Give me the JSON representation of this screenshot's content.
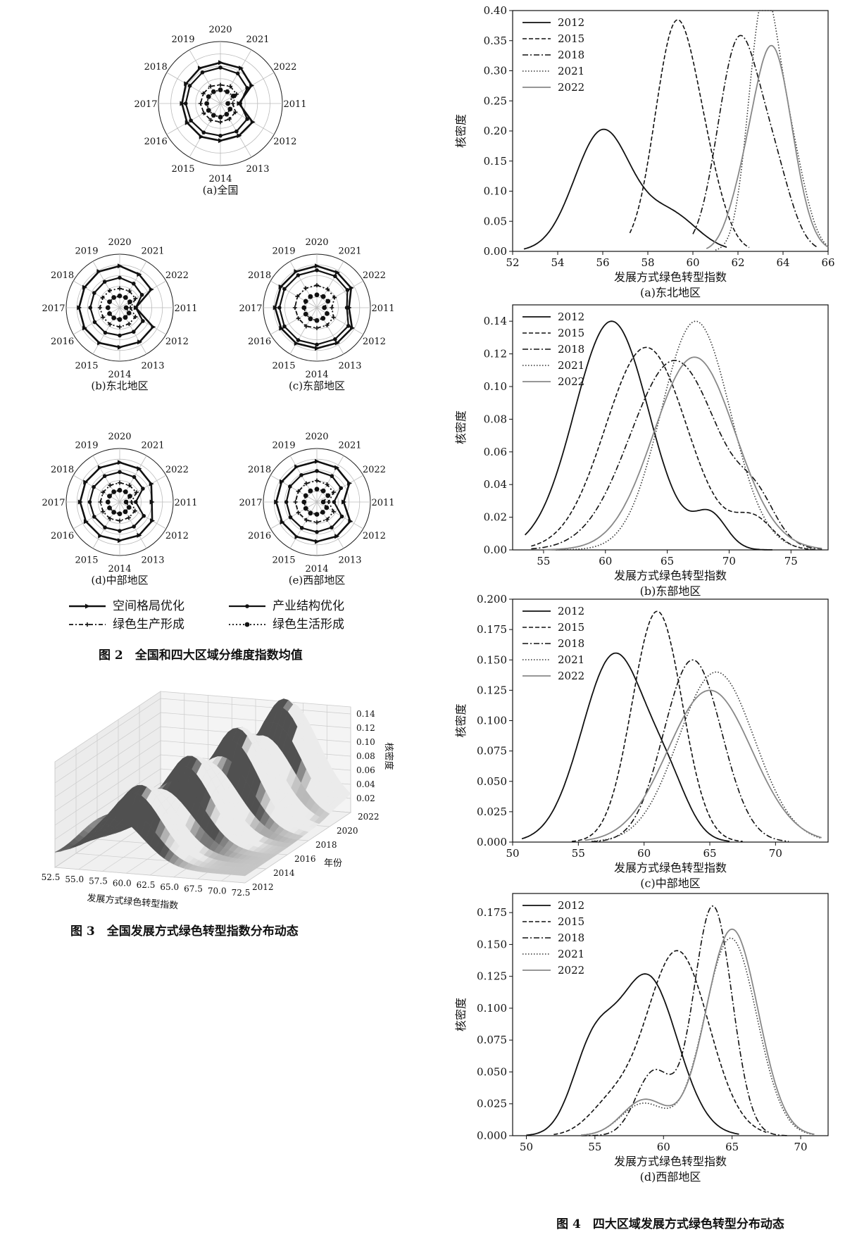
{
  "radar": {
    "years": [
      "2020",
      "2021",
      "2022",
      "2011",
      "2012",
      "2013",
      "2014",
      "2015",
      "2016",
      "2017",
      "2018",
      "2019"
    ],
    "max_value": 1.0,
    "legend": [
      "空间格局优化",
      "产业结构优化",
      "绿色生产形成",
      "绿色生活形成"
    ],
    "figure_caption": "图 2　全国和四大区域分维度指数均值",
    "panels": [
      {
        "label": "(a)全国",
        "series": [
          {
            "dimension": "空间格局优化",
            "values": [
              0.66,
              0.66,
              0.58,
              0.3,
              0.6,
              0.6,
              0.6,
              0.62,
              0.62,
              0.62,
              0.64,
              0.66
            ]
          },
          {
            "dimension": "产业结构优化",
            "values": [
              0.58,
              0.56,
              0.5,
              0.32,
              0.5,
              0.52,
              0.52,
              0.54,
              0.55,
              0.56,
              0.57,
              0.58
            ]
          },
          {
            "dimension": "绿色生产形成",
            "values": [
              0.3,
              0.32,
              0.3,
              0.2,
              0.28,
              0.29,
              0.3,
              0.31,
              0.31,
              0.32,
              0.32,
              0.32
            ]
          },
          {
            "dimension": "绿色生活形成",
            "values": [
              0.22,
              0.22,
              0.24,
              0.12,
              0.18,
              0.2,
              0.22,
              0.22,
              0.22,
              0.22,
              0.22,
              0.22
            ]
          }
        ]
      },
      {
        "label": "(b)东北地区",
        "series": [
          {
            "dimension": "空间格局优化",
            "values": [
              0.78,
              0.72,
              0.68,
              0.3,
              0.72,
              0.74,
              0.74,
              0.76,
              0.76,
              0.76,
              0.76,
              0.78
            ]
          },
          {
            "dimension": "产业结构优化",
            "values": [
              0.56,
              0.52,
              0.48,
              0.3,
              0.5,
              0.52,
              0.52,
              0.54,
              0.54,
              0.55,
              0.55,
              0.56
            ]
          },
          {
            "dimension": "绿色生产形成",
            "values": [
              0.36,
              0.36,
              0.34,
              0.2,
              0.34,
              0.35,
              0.36,
              0.36,
              0.36,
              0.37,
              0.37,
              0.37
            ]
          },
          {
            "dimension": "绿色生活形成",
            "values": [
              0.22,
              0.22,
              0.22,
              0.12,
              0.2,
              0.21,
              0.22,
              0.22,
              0.22,
              0.22,
              0.22,
              0.22
            ]
          }
        ]
      },
      {
        "label": "(c)东部地区",
        "series": [
          {
            "dimension": "空间格局优化",
            "values": [
              0.78,
              0.76,
              0.74,
              0.6,
              0.76,
              0.76,
              0.76,
              0.77,
              0.77,
              0.78,
              0.78,
              0.78
            ]
          },
          {
            "dimension": "产业结构优化",
            "values": [
              0.7,
              0.68,
              0.66,
              0.56,
              0.68,
              0.68,
              0.69,
              0.7,
              0.7,
              0.7,
              0.7,
              0.7
            ]
          },
          {
            "dimension": "绿色生产形成",
            "values": [
              0.42,
              0.4,
              0.38,
              0.28,
              0.36,
              0.38,
              0.38,
              0.4,
              0.4,
              0.41,
              0.42,
              0.42
            ]
          },
          {
            "dimension": "绿色生活形成",
            "values": [
              0.24,
              0.24,
              0.24,
              0.14,
              0.22,
              0.23,
              0.24,
              0.24,
              0.24,
              0.24,
              0.24,
              0.24
            ]
          }
        ]
      },
      {
        "label": "(d)中部地区",
        "series": [
          {
            "dimension": "空间格局优化",
            "values": [
              0.74,
              0.72,
              0.68,
              0.6,
              0.7,
              0.72,
              0.72,
              0.73,
              0.73,
              0.74,
              0.74,
              0.74
            ]
          },
          {
            "dimension": "产业结构优化",
            "values": [
              0.56,
              0.54,
              0.5,
              0.3,
              0.52,
              0.53,
              0.54,
              0.55,
              0.55,
              0.56,
              0.56,
              0.56
            ]
          },
          {
            "dimension": "绿色生产形成",
            "values": [
              0.36,
              0.36,
              0.36,
              0.22,
              0.33,
              0.34,
              0.35,
              0.36,
              0.36,
              0.36,
              0.36,
              0.36
            ]
          },
          {
            "dimension": "绿色生活形成",
            "values": [
              0.22,
              0.22,
              0.22,
              0.12,
              0.2,
              0.21,
              0.22,
              0.22,
              0.22,
              0.22,
              0.22,
              0.22
            ]
          }
        ]
      },
      {
        "label": "(e)西部地区",
        "series": [
          {
            "dimension": "空间格局优化",
            "values": [
              0.76,
              0.74,
              0.7,
              0.5,
              0.72,
              0.74,
              0.74,
              0.75,
              0.75,
              0.76,
              0.76,
              0.76
            ]
          },
          {
            "dimension": "产业结构优化",
            "values": [
              0.58,
              0.56,
              0.52,
              0.32,
              0.54,
              0.55,
              0.56,
              0.56,
              0.57,
              0.57,
              0.58,
              0.58
            ]
          },
          {
            "dimension": "绿色生产形成",
            "values": [
              0.4,
              0.38,
              0.36,
              0.22,
              0.36,
              0.38,
              0.38,
              0.39,
              0.4,
              0.4,
              0.4,
              0.4
            ]
          },
          {
            "dimension": "绿色生活形成",
            "values": [
              0.24,
              0.24,
              0.24,
              0.12,
              0.21,
              0.22,
              0.23,
              0.24,
              0.24,
              0.24,
              0.24,
              0.24
            ]
          }
        ]
      }
    ]
  },
  "surface": {
    "figure_caption": "图 3　全国发展方式绿色转型指数分布动态",
    "x_label": "发展方式绿色转型指数",
    "y_label": "年份",
    "z_label": "核密度",
    "x_ticks": [
      "52.5",
      "55.0",
      "57.5",
      "60.0",
      "62.5",
      "65.0",
      "67.5",
      "70.0",
      "72.5"
    ],
    "y_ticks": [
      "2012",
      "2014",
      "2016",
      "2018",
      "2020",
      "2022"
    ],
    "z_ticks": [
      "0.02",
      "0.04",
      "0.06",
      "0.08",
      "0.10",
      "0.12",
      "0.14"
    ],
    "x_range": [
      52.5,
      72.5
    ],
    "year_range": [
      2012,
      2022
    ],
    "z_range": [
      0,
      0.15
    ],
    "peaks": [
      {
        "year": 2012,
        "center": 58.5,
        "height": 0.08
      },
      {
        "year": 2015,
        "center": 61.5,
        "height": 0.1
      },
      {
        "year": 2018,
        "center": 64.0,
        "height": 0.12
      },
      {
        "year": 2021,
        "center": 66.0,
        "height": 0.13
      },
      {
        "year": 2022,
        "center": 66.5,
        "height": 0.14
      }
    ]
  },
  "kde": {
    "figure_caption": "图 4　四大区域发展方式绿色转型分布动态",
    "x_label": "发展方式绿色转型指数",
    "y_label": "核密度",
    "legend": [
      "2012",
      "2015",
      "2018",
      "2021",
      "2022"
    ],
    "panels": [
      {
        "label": "(a)东北地区",
        "xlim": [
          52,
          66
        ],
        "ylim": [
          0,
          0.4
        ],
        "xticks": [
          52,
          54,
          56,
          58,
          60,
          62,
          64,
          66
        ],
        "yticks": [
          "0.00",
          "0.05",
          "0.10",
          "0.15",
          "0.20",
          "0.25",
          "0.30",
          "0.35",
          "0.40"
        ],
        "series": [
          {
            "year": "2012",
            "comps": [
              [
                56,
                1.25,
                0.2
              ],
              [
                59,
                1.2,
                0.06
              ]
            ],
            "range": [
              52.5,
              61.5
            ]
          },
          {
            "year": "2015",
            "comps": [
              [
                59.2,
                0.9,
                0.36
              ],
              [
                60.6,
                0.8,
                0.1
              ]
            ],
            "range": [
              57.2,
              62.5
            ]
          },
          {
            "year": "2018",
            "comps": [
              [
                62,
                0.9,
                0.34
              ],
              [
                63.6,
                0.8,
                0.12
              ]
            ],
            "range": [
              60,
              65.5
            ]
          },
          {
            "year": "2021",
            "comps": [
              [
                63.1,
                0.65,
                0.39
              ],
              [
                64.3,
                0.7,
                0.16
              ]
            ],
            "range": [
              61,
              66
            ]
          },
          {
            "year": "2022",
            "comps": [
              [
                63.5,
                0.9,
                0.34
              ],
              [
                62,
                0.6,
                0.04
              ]
            ],
            "range": [
              60.6,
              66
            ]
          }
        ]
      },
      {
        "label": "(b)东部地区",
        "xlim": [
          52.5,
          78
        ],
        "ylim": [
          0,
          0.15
        ],
        "xticks": [
          55,
          60,
          65,
          70,
          75
        ],
        "yticks": [
          "0.00",
          "0.02",
          "0.04",
          "0.06",
          "0.08",
          "0.10",
          "0.12",
          "0.14"
        ],
        "series": [
          {
            "year": "2012",
            "comps": [
              [
                60.5,
                3,
                0.14
              ],
              [
                68.5,
                1.3,
                0.02
              ]
            ],
            "range": [
              53.5,
              73.5
            ]
          },
          {
            "year": "2015",
            "comps": [
              [
                63.3,
                3.3,
                0.124
              ],
              [
                72,
                1.6,
                0.018
              ]
            ],
            "range": [
              54,
              77
            ]
          },
          {
            "year": "2018",
            "comps": [
              [
                65.6,
                3.6,
                0.116
              ],
              [
                72.3,
                1.5,
                0.02
              ]
            ],
            "range": [
              54,
              77.5
            ]
          },
          {
            "year": "2021",
            "comps": [
              [
                67.3,
                2.8,
                0.14
              ]
            ],
            "range": [
              56,
              77
            ]
          },
          {
            "year": "2022",
            "comps": [
              [
                67.2,
                3.3,
                0.118
              ]
            ],
            "range": [
              55,
              77.5
            ]
          }
        ]
      },
      {
        "label": "(c)中部地区",
        "xlim": [
          50,
          74
        ],
        "ylim": [
          0,
          0.2
        ],
        "xticks": [
          50,
          55,
          60,
          65,
          70
        ],
        "yticks": [
          "0.000",
          "0.025",
          "0.050",
          "0.075",
          "0.100",
          "0.125",
          "0.150",
          "0.175",
          "0.200"
        ],
        "series": [
          {
            "year": "2012",
            "comps": [
              [
                57.8,
                2.5,
                0.155
              ],
              [
                62,
                1.5,
                0.03
              ]
            ],
            "range": [
              50.7,
              66.5
            ]
          },
          {
            "year": "2015",
            "comps": [
              [
                61,
                1.9,
                0.19
              ]
            ],
            "range": [
              54.5,
              67.5
            ]
          },
          {
            "year": "2018",
            "comps": [
              [
                63.7,
                2.2,
                0.15
              ]
            ],
            "range": [
              56,
              71
            ]
          },
          {
            "year": "2021",
            "comps": [
              [
                65.5,
                2.9,
                0.14
              ]
            ],
            "range": [
              56,
              73.5
            ]
          },
          {
            "year": "2022",
            "comps": [
              [
                65,
                3.2,
                0.125
              ]
            ],
            "range": [
              55.5,
              73.5
            ]
          }
        ]
      },
      {
        "label": "(d)西部地区",
        "xlim": [
          49,
          72
        ],
        "ylim": [
          0,
          0.19
        ],
        "xticks": [
          50,
          55,
          60,
          65,
          70
        ],
        "yticks": [
          "0.000",
          "0.025",
          "0.050",
          "0.075",
          "0.100",
          "0.125",
          "0.150",
          "0.175"
        ],
        "series": [
          {
            "year": "2012",
            "comps": [
              [
                58.8,
                2.2,
                0.125
              ],
              [
                54.8,
                1.5,
                0.06
              ]
            ],
            "range": [
              50,
              65.5
            ]
          },
          {
            "year": "2015",
            "comps": [
              [
                61,
                2.3,
                0.145
              ],
              [
                56,
                1.6,
                0.02
              ]
            ],
            "range": [
              52,
              67.5
            ]
          },
          {
            "year": "2018",
            "comps": [
              [
                63.6,
                1.4,
                0.18
              ],
              [
                59.3,
                1.3,
                0.05
              ]
            ],
            "range": [
              54,
              69
            ]
          },
          {
            "year": "2021",
            "comps": [
              [
                64.9,
                1.9,
                0.155
              ],
              [
                58.5,
                1.6,
                0.025
              ]
            ],
            "range": [
              54,
              71
            ]
          },
          {
            "year": "2022",
            "comps": [
              [
                65,
                1.9,
                0.162
              ],
              [
                58.6,
                1.6,
                0.028
              ]
            ],
            "range": [
              54,
              71
            ]
          }
        ]
      }
    ]
  }
}
